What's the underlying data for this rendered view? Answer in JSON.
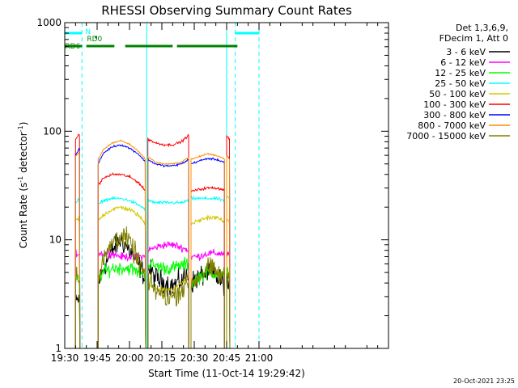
{
  "chart_data": {
    "type": "line",
    "title": "RHESSI Observing Summary Count Rates",
    "xlabel": "Start Time (11-Oct-14 19:29:42)",
    "ylabel_main": "Count Rate (s",
    "ylabel_sup1": "-1",
    "ylabel_mid": " detector",
    "ylabel_sup2": "-1",
    "ylabel_end": ")",
    "yscale": "log",
    "ylim": [
      1,
      1000
    ],
    "y_ticks": [
      {
        "value": 1,
        "label": "1"
      },
      {
        "value": 10,
        "label": "10"
      },
      {
        "value": 100,
        "label": "100"
      },
      {
        "value": 1000,
        "label": "1000"
      }
    ],
    "xlim_min": [
      1170,
      1320
    ],
    "x_ticks": [
      {
        "value": 1170,
        "label": "19:30"
      },
      {
        "value": 1185,
        "label": "19:45"
      },
      {
        "value": 1200,
        "label": "20:00"
      },
      {
        "value": 1215,
        "label": "20:15"
      },
      {
        "value": 1230,
        "label": "20:30"
      },
      {
        "value": 1245,
        "label": "20:45"
      },
      {
        "value": 1260,
        "label": "21:00"
      }
    ],
    "legend_header": [
      "Det 1,3,6,9,",
      "FDecim 1, Att 0"
    ],
    "legend_position": "right",
    "grid": false,
    "series": [
      {
        "name": "3 - 6 keV",
        "color": "#000000"
      },
      {
        "name": "6 - 12 keV",
        "color": "#ff00ff"
      },
      {
        "name": "12 - 25 keV",
        "color": "#00ff00"
      },
      {
        "name": "25 - 50 keV",
        "color": "#00ffff"
      },
      {
        "name": "50 - 100 keV",
        "color": "#d2c800"
      },
      {
        "name": "100 - 300 keV",
        "color": "#ff0000"
      },
      {
        "name": "300 - 800 keV",
        "color": "#0000ff"
      },
      {
        "name": "800 - 7000 keV",
        "color": "#ff8c00"
      },
      {
        "name": "7000 - 15000 keV",
        "color": "#808000"
      }
    ],
    "data_segments": [
      {
        "x": [
          1185.5,
          1188,
          1192,
          1196,
          1200,
          1204,
          1207.5
        ],
        "values": {
          "3 - 6 keV": [
            4.0,
            5.5,
            8.0,
            10.0,
            8.0,
            6.0,
            4.5
          ],
          "6 - 12 keV": [
            7.5,
            7.5,
            7.5,
            7.0,
            7.0,
            7.0,
            7.0
          ],
          "12 - 25 keV": [
            4.5,
            5.0,
            5.5,
            5.5,
            5.5,
            5.0,
            5.0
          ],
          "25 - 50 keV": [
            21,
            23,
            24,
            24,
            23,
            21,
            19
          ],
          "50 - 100 keV": [
            15,
            17,
            19,
            20,
            19,
            17,
            14
          ],
          "100 - 300 keV": [
            32,
            37,
            40,
            40,
            38,
            34,
            28
          ],
          "300 - 800 keV": [
            50,
            63,
            72,
            75,
            70,
            62,
            52
          ],
          "800 - 7000 keV": [
            55,
            68,
            78,
            82,
            76,
            66,
            55
          ],
          "7000 - 15000 keV": [
            4.0,
            6.5,
            9.5,
            11.0,
            9.5,
            6.5,
            4.5
          ]
        }
      },
      {
        "x": [
          1208.5,
          1212,
          1216,
          1220,
          1224,
          1227.5
        ],
        "values": {
          "3 - 6 keV": [
            5.5,
            4.5,
            4.0,
            3.8,
            4.2,
            5.0
          ],
          "6 - 12 keV": [
            8.0,
            8.5,
            9.0,
            9.0,
            8.5,
            8.0
          ],
          "12 - 25 keV": [
            6.0,
            5.8,
            5.5,
            5.5,
            5.8,
            6.0
          ],
          "25 - 50 keV": [
            23,
            22,
            22,
            22,
            22,
            23
          ],
          "50 - 100 keV": [
            4.0,
            3.5,
            3.5,
            3.5,
            4.0,
            4.5
          ],
          "100 - 300 keV": [
            85,
            78,
            75,
            75,
            80,
            92
          ],
          "300 - 800 keV": [
            55,
            50,
            48,
            48,
            50,
            55
          ],
          "800 - 7000 keV": [
            58,
            52,
            50,
            50,
            52,
            58
          ],
          "7000 - 15000 keV": [
            4.0,
            3.5,
            3.0,
            3.0,
            3.5,
            4.0
          ]
        }
      },
      {
        "x": [
          1228.5,
          1232,
          1236,
          1240,
          1244
        ],
        "values": {
          "3 - 6 keV": [
            4.0,
            4.5,
            5.0,
            4.5,
            4.0
          ],
          "6 - 12 keV": [
            7.0,
            7.0,
            7.5,
            7.5,
            7.5
          ],
          "12 - 25 keV": [
            4.0,
            4.5,
            5.0,
            5.0,
            4.5
          ],
          "25 - 50 keV": [
            24,
            24,
            24,
            24,
            23
          ],
          "50 - 100 keV": [
            14,
            15,
            16,
            16,
            15
          ],
          "100 - 300 keV": [
            28,
            29,
            30,
            30,
            29
          ],
          "300 - 800 keV": [
            50,
            53,
            56,
            55,
            52
          ],
          "800 - 7000 keV": [
            55,
            58,
            62,
            60,
            56
          ],
          "7000 - 15000 keV": [
            4.0,
            4.5,
            5.5,
            5.0,
            4.5
          ]
        }
      },
      {
        "x": [
          1245,
          1246.5
        ],
        "values": {
          "3 - 6 keV": [
            4.0,
            3.5
          ],
          "6 - 12 keV": [
            7.5,
            7.0
          ],
          "12 - 25 keV": [
            5.5,
            5.0
          ],
          "25 - 50 keV": [
            25,
            24
          ],
          "50 - 100 keV": [
            15,
            14
          ],
          "100 - 300 keV": [
            90,
            85
          ],
          "300 - 800 keV": [
            60,
            56
          ],
          "800 - 7000 keV": [
            60,
            55
          ],
          "7000 - 15000 keV": [
            5.0,
            4.5
          ]
        }
      }
    ],
    "pre_segment": {
      "x": [
        1175,
        1177
      ],
      "values": {
        "3 - 6 keV": [
          2.5,
          3.0
        ],
        "6 - 12 keV": [
          7.5,
          7.5
        ],
        "12 - 25 keV": [
          4.0,
          4.5
        ],
        "25 - 50 keV": [
          22,
          24
        ],
        "50 - 100 keV": [
          15,
          16
        ],
        "100 - 300 keV": [
          85,
          95
        ],
        "300 - 800 keV": [
          60,
          70
        ],
        "800 - 7000 keV": [
          58,
          65
        ],
        "7000 - 15000 keV": [
          4.5,
          5.0
        ]
      }
    },
    "annotations": {
      "night": {
        "label": "N",
        "color": "#00ffff",
        "intervals": [
          [
            1170,
            1178
          ],
          [
            1249,
            1260
          ]
        ]
      },
      "rd0": {
        "label": "RD0",
        "color": "#008000",
        "intervals": [
          [
            1184,
            1185
          ]
        ]
      },
      "rd6": {
        "label": "RD6",
        "color": "#008000",
        "intervals": [
          [
            1170,
            1178
          ],
          [
            1180,
            1193
          ],
          [
            1198,
            1220
          ],
          [
            1222,
            1250
          ]
        ]
      },
      "vertical_solid": {
        "color": "#00ffff",
        "x": [
          1170,
          1208,
          1245
        ]
      },
      "vertical_dashed": {
        "color": "#00ffff",
        "x": [
          1178,
          1249,
          1260
        ]
      }
    },
    "timestamp": "20-Oct-2021 23:25"
  }
}
